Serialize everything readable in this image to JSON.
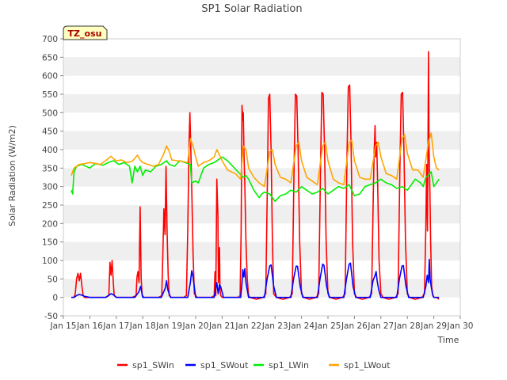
{
  "chart_data": {
    "type": "line",
    "title": "SP1 Solar Radiation",
    "xlabel": "Time",
    "ylabel": "Solar Radiation (W/m2)",
    "xlim": [
      15,
      30
    ],
    "ylim": [
      -50,
      700
    ],
    "x_ticks": [
      15,
      16,
      17,
      18,
      19,
      20,
      21,
      22,
      23,
      24,
      25,
      26,
      27,
      28,
      29,
      30
    ],
    "x_tick_labels": [
      "Jan 15",
      "Jan 16",
      "Jan 17",
      "Jan 18",
      "Jan 19",
      "Jan 20",
      "Jan 21",
      "Jan 22",
      "Jan 23",
      "Jan 24",
      "Jan 25",
      "Jan 26",
      "Jan 27",
      "Jan 28",
      "Jan 29",
      "Jan 30"
    ],
    "y_ticks": [
      -50,
      0,
      50,
      100,
      150,
      200,
      250,
      300,
      350,
      400,
      450,
      500,
      550,
      600,
      650,
      700
    ],
    "site_badge": "TZ_osu",
    "grid": "horizontal-bands",
    "legend_position": "bottom",
    "series": [
      {
        "name": "sp1_SWin",
        "color": "#ff0000",
        "x": [
          15.3,
          15.4,
          15.45,
          15.5,
          15.55,
          15.6,
          15.65,
          15.7,
          15.75,
          15.8,
          15.9,
          16.0,
          16.3,
          16.6,
          16.72,
          16.76,
          16.8,
          16.84,
          16.88,
          16.92,
          17.0,
          17.3,
          17.6,
          17.75,
          17.78,
          17.82,
          17.86,
          17.9,
          17.94,
          17.98,
          18.05,
          18.3,
          18.6,
          18.72,
          18.76,
          18.8,
          18.84,
          18.88,
          18.92,
          18.96,
          19.0,
          19.08,
          19.3,
          19.55,
          19.65,
          19.7,
          19.75,
          19.78,
          19.8,
          19.85,
          19.9,
          19.95,
          20.05,
          20.3,
          20.6,
          20.7,
          20.73,
          20.76,
          20.8,
          20.84,
          20.86,
          20.9,
          20.92,
          20.95,
          21.0,
          21.3,
          21.6,
          21.68,
          21.72,
          21.75,
          21.78,
          21.8,
          21.83,
          21.86,
          21.9,
          21.95,
          22.0,
          22.05,
          22.3,
          22.55,
          22.65,
          22.72,
          22.75,
          22.8,
          22.85,
          22.9,
          22.95,
          23.05,
          23.3,
          23.55,
          23.65,
          23.72,
          23.77,
          23.82,
          23.87,
          23.93,
          24.0,
          24.08,
          24.3,
          24.55,
          24.65,
          24.72,
          24.77,
          24.82,
          24.87,
          24.93,
          25.0,
          25.08,
          25.3,
          25.55,
          25.65,
          25.72,
          25.77,
          25.82,
          25.87,
          25.93,
          26.0,
          26.08,
          26.3,
          26.55,
          26.65,
          26.72,
          26.75,
          26.78,
          26.8,
          26.84,
          26.88,
          26.93,
          27.0,
          27.08,
          27.3,
          27.55,
          27.65,
          27.72,
          27.77,
          27.82,
          27.87,
          27.93,
          28.0,
          28.08,
          28.3,
          28.55,
          28.65,
          28.7,
          28.73,
          28.76,
          28.78,
          28.8,
          28.82,
          28.85,
          28.88,
          28.92,
          28.96,
          29.0,
          29.05,
          29.1,
          29.2
        ],
        "values": [
          0,
          0,
          10,
          50,
          65,
          45,
          65,
          30,
          5,
          0,
          0,
          0,
          0,
          0,
          5,
          95,
          60,
          100,
          50,
          5,
          0,
          0,
          0,
          5,
          55,
          70,
          40,
          245,
          50,
          5,
          0,
          0,
          0,
          5,
          120,
          240,
          170,
          355,
          180,
          60,
          5,
          0,
          0,
          0,
          5,
          180,
          420,
          500,
          450,
          300,
          120,
          10,
          0,
          0,
          0,
          5,
          70,
          5,
          320,
          220,
          40,
          135,
          20,
          5,
          0,
          0,
          0,
          5,
          180,
          520,
          480,
          500,
          380,
          300,
          150,
          50,
          5,
          0,
          -5,
          0,
          10,
          350,
          540,
          550,
          400,
          150,
          10,
          0,
          -5,
          0,
          10,
          350,
          550,
          545,
          400,
          150,
          10,
          0,
          -5,
          0,
          10,
          350,
          555,
          550,
          400,
          150,
          10,
          0,
          -5,
          0,
          10,
          380,
          570,
          575,
          420,
          150,
          10,
          0,
          -5,
          0,
          10,
          300,
          400,
          465,
          380,
          420,
          300,
          100,
          10,
          0,
          -5,
          0,
          10,
          350,
          550,
          555,
          400,
          150,
          10,
          0,
          -5,
          0,
          10,
          200,
          360,
          180,
          420,
          665,
          400,
          300,
          150,
          30,
          5,
          0,
          0,
          0,
          -5
        ]
      },
      {
        "name": "sp1_SWout",
        "color": "#0000ff",
        "x": [
          15.3,
          15.4,
          15.5,
          15.6,
          15.7,
          15.8,
          16.0,
          16.6,
          16.8,
          16.9,
          17.0,
          17.7,
          17.85,
          17.92,
          18.0,
          18.7,
          18.85,
          18.9,
          18.95,
          19.05,
          19.7,
          19.8,
          19.85,
          19.9,
          20.0,
          20.7,
          20.8,
          20.85,
          20.9,
          20.95,
          21.05,
          21.7,
          21.75,
          21.78,
          21.82,
          21.86,
          21.9,
          22.0,
          22.6,
          22.7,
          22.8,
          22.85,
          22.95,
          23.05,
          23.6,
          23.7,
          23.8,
          23.85,
          23.95,
          24.05,
          24.6,
          24.7,
          24.8,
          24.85,
          24.95,
          25.05,
          25.6,
          25.7,
          25.8,
          25.85,
          25.95,
          26.05,
          26.6,
          26.7,
          26.78,
          26.82,
          26.86,
          26.92,
          27.0,
          27.6,
          27.7,
          27.8,
          27.85,
          27.95,
          28.05,
          28.6,
          28.7,
          28.75,
          28.8,
          28.83,
          28.86,
          28.9,
          28.95,
          29.0,
          29.2
        ],
        "values": [
          0,
          0,
          5,
          8,
          6,
          3,
          0,
          0,
          10,
          7,
          0,
          0,
          15,
          30,
          0,
          0,
          25,
          45,
          20,
          0,
          0,
          40,
          72,
          55,
          0,
          0,
          40,
          10,
          35,
          28,
          0,
          0,
          40,
          75,
          55,
          78,
          40,
          0,
          0,
          50,
          85,
          88,
          30,
          0,
          0,
          50,
          85,
          84,
          30,
          0,
          0,
          50,
          90,
          87,
          30,
          0,
          0,
          50,
          90,
          93,
          30,
          0,
          0,
          45,
          60,
          70,
          45,
          20,
          0,
          0,
          50,
          85,
          86,
          30,
          0,
          0,
          30,
          60,
          40,
          103,
          50,
          30,
          10,
          0,
          0
        ]
      },
      {
        "name": "sp1_LWin",
        "color": "#00ee00",
        "x": [
          15.3,
          15.35,
          15.4,
          15.5,
          15.7,
          16.0,
          16.2,
          16.5,
          16.7,
          16.9,
          17.1,
          17.3,
          17.5,
          17.6,
          17.7,
          17.8,
          17.9,
          18.0,
          18.1,
          18.3,
          18.5,
          18.7,
          18.9,
          19.0,
          19.2,
          19.4,
          19.6,
          19.8,
          19.85,
          20.0,
          20.1,
          20.3,
          20.5,
          20.7,
          20.9,
          21.0,
          21.2,
          21.4,
          21.6,
          21.8,
          21.9,
          22.0,
          22.2,
          22.4,
          22.5,
          22.6,
          22.8,
          23.0,
          23.2,
          23.4,
          23.6,
          23.8,
          24.0,
          24.2,
          24.4,
          24.6,
          24.8,
          25.0,
          25.2,
          25.4,
          25.6,
          25.8,
          26.0,
          26.2,
          26.4,
          26.6,
          26.8,
          27.0,
          27.2,
          27.4,
          27.6,
          27.8,
          28.0,
          28.1,
          28.3,
          28.5,
          28.6,
          28.7,
          28.8,
          28.9,
          29.0,
          29.1,
          29.2
        ],
        "values": [
          290,
          280,
          340,
          355,
          360,
          350,
          362,
          358,
          365,
          370,
          360,
          365,
          355,
          310,
          355,
          340,
          355,
          330,
          345,
          340,
          355,
          360,
          370,
          360,
          355,
          370,
          365,
          360,
          310,
          315,
          310,
          350,
          360,
          365,
          375,
          380,
          370,
          355,
          340,
          325,
          330,
          320,
          290,
          270,
          280,
          285,
          280,
          260,
          275,
          280,
          290,
          285,
          300,
          290,
          280,
          285,
          295,
          280,
          290,
          300,
          295,
          305,
          275,
          280,
          300,
          305,
          310,
          320,
          310,
          305,
          295,
          300,
          290,
          300,
          320,
          310,
          300,
          325,
          330,
          340,
          300,
          310,
          320
        ]
      },
      {
        "name": "sp1_LWout",
        "color": "#ffa500",
        "x": [
          15.3,
          15.4,
          15.6,
          15.8,
          16.0,
          16.2,
          16.4,
          16.6,
          16.8,
          16.9,
          17.0,
          17.2,
          17.4,
          17.6,
          17.8,
          17.9,
          18.0,
          18.2,
          18.4,
          18.6,
          18.8,
          18.9,
          19.0,
          19.1,
          19.3,
          19.5,
          19.7,
          19.8,
          19.9,
          20.0,
          20.1,
          20.3,
          20.5,
          20.7,
          20.8,
          20.9,
          21.0,
          21.2,
          21.5,
          21.7,
          21.8,
          21.9,
          22.0,
          22.2,
          22.4,
          22.6,
          22.8,
          22.9,
          23.0,
          23.2,
          23.4,
          23.6,
          23.8,
          23.9,
          24.0,
          24.2,
          24.4,
          24.6,
          24.8,
          24.9,
          25.0,
          25.2,
          25.4,
          25.6,
          25.8,
          25.9,
          26.0,
          26.2,
          26.4,
          26.6,
          26.8,
          26.9,
          27.0,
          27.2,
          27.4,
          27.6,
          27.8,
          27.9,
          28.0,
          28.2,
          28.4,
          28.6,
          28.8,
          28.9,
          29.0,
          29.1,
          29.2
        ],
        "values": [
          330,
          350,
          360,
          362,
          365,
          363,
          360,
          370,
          382,
          375,
          370,
          372,
          365,
          368,
          385,
          372,
          365,
          360,
          355,
          360,
          390,
          410,
          395,
          372,
          370,
          368,
          365,
          430,
          410,
          380,
          355,
          365,
          370,
          380,
          400,
          385,
          370,
          345,
          335,
          320,
          410,
          400,
          350,
          325,
          310,
          300,
          395,
          400,
          360,
          325,
          320,
          310,
          410,
          420,
          370,
          325,
          315,
          305,
          410,
          420,
          370,
          320,
          310,
          305,
          420,
          425,
          370,
          325,
          320,
          320,
          410,
          420,
          380,
          335,
          330,
          320,
          430,
          440,
          390,
          345,
          345,
          325,
          420,
          445,
          380,
          350,
          345
        ]
      }
    ]
  }
}
